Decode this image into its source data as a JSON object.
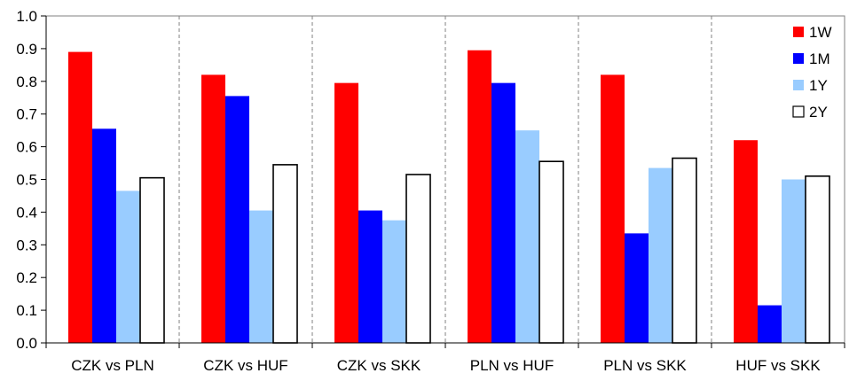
{
  "chart_data": {
    "type": "bar",
    "categories": [
      "CZK vs PLN",
      "CZK vs HUF",
      "CZK vs SKK",
      "PLN vs HUF",
      "PLN vs SKK",
      "HUF vs SKK"
    ],
    "series": [
      {
        "name": "1W",
        "color": "#ff0000",
        "values": [
          0.89,
          0.82,
          0.795,
          0.895,
          0.82,
          0.62
        ]
      },
      {
        "name": "1M",
        "color": "#0000ff",
        "values": [
          0.655,
          0.755,
          0.405,
          0.795,
          0.335,
          0.115
        ]
      },
      {
        "name": "1Y",
        "color": "#99ccff",
        "values": [
          0.465,
          0.405,
          0.375,
          0.65,
          0.535,
          0.5
        ]
      },
      {
        "name": "2Y",
        "color": "#ffffff",
        "values": [
          0.505,
          0.545,
          0.515,
          0.555,
          0.565,
          0.51
        ]
      }
    ],
    "yticks": [
      "0.0",
      "0.1",
      "0.2",
      "0.3",
      "0.4",
      "0.5",
      "0.6",
      "0.7",
      "0.8",
      "0.9",
      "1.0"
    ],
    "ylim": [
      0,
      1
    ],
    "title": "",
    "xlabel": "",
    "ylabel": "",
    "grid": "dashed vertical separators",
    "legend_position": "top-right"
  }
}
